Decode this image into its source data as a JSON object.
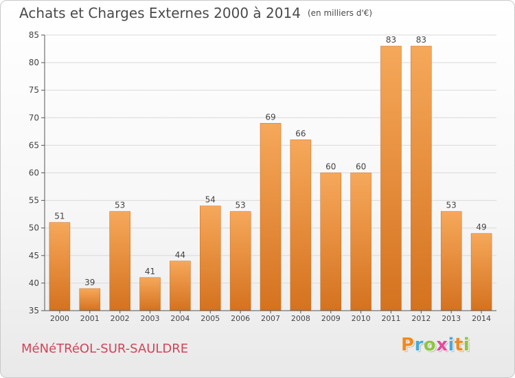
{
  "title": "Achats et Charges Externes 2000 à 2014",
  "subtitle": "(en milliers d'€)",
  "commune": "MéNéTRéOL-SUR-SAULDRE",
  "logo": {
    "letters": [
      "P",
      "r",
      "o",
      "x",
      "i",
      "t",
      "i"
    ],
    "colors": [
      "#f08a1c",
      "#4aa9d6",
      "#8cc63f",
      "#e64a9c",
      "#4aa9d6",
      "#f08a1c",
      "#8cc63f"
    ]
  },
  "colors": {
    "bar_top": "#f6a85a",
    "bar_bottom": "#d4721f",
    "bar_edge": "#c8681c",
    "text": "#444444",
    "grid": "#d9d9d9"
  },
  "chart_data": {
    "type": "bar",
    "categories": [
      "2000",
      "2001",
      "2002",
      "2003",
      "2004",
      "2005",
      "2006",
      "2007",
      "2008",
      "2009",
      "2010",
      "2011",
      "2012",
      "2013",
      "2014"
    ],
    "values": [
      51,
      39,
      53,
      41,
      44,
      54,
      53,
      69,
      66,
      60,
      60,
      83,
      83,
      53,
      49
    ],
    "title": "Achats et Charges Externes 2000 à 2014",
    "xlabel": "",
    "ylabel": "",
    "ylim": [
      35,
      85
    ],
    "yticks": [
      35,
      40,
      45,
      50,
      55,
      60,
      65,
      70,
      75,
      80,
      85
    ],
    "grid": "horizontal",
    "data_labels": true
  }
}
